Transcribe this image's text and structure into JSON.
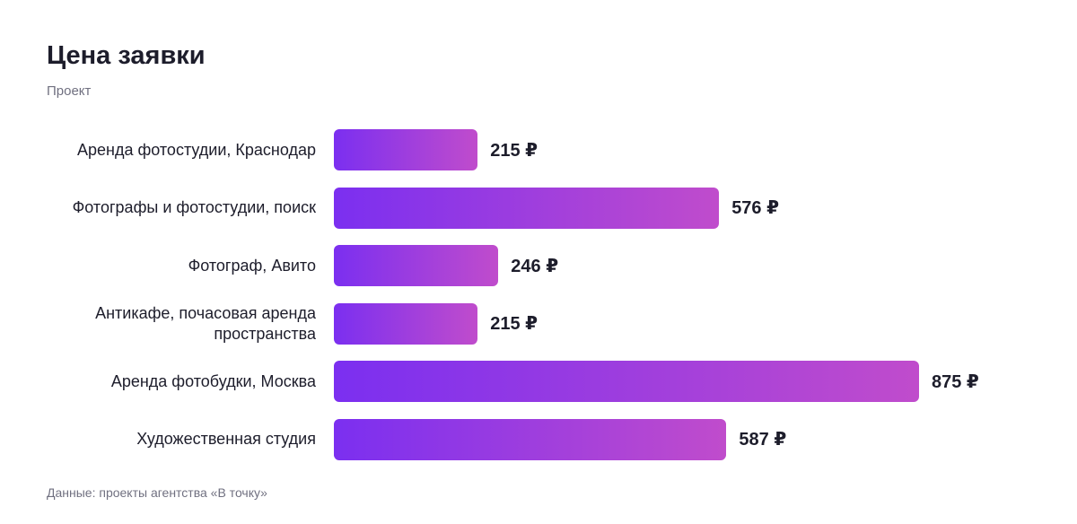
{
  "chart_data": {
    "type": "bar",
    "orientation": "horizontal",
    "title": "Цена заявки",
    "subtitle": "Проект",
    "categories": [
      "Аренда фотостудии, Краснодар",
      "Фотографы и фотостудии, поиск",
      "Фотограф, Авито",
      "Антикафе, почасовая аренда пространства",
      "Аренда фотобудки, Москва",
      "Художественная студия"
    ],
    "values": [
      215,
      576,
      246,
      215,
      875,
      587
    ],
    "value_labels": [
      "215 ₽",
      "576 ₽",
      "246 ₽",
      "215 ₽",
      "875 ₽",
      "587 ₽"
    ],
    "color": [
      "#7b2ff0",
      "#c04ccc"
    ],
    "source": "Данные: проекты агентства «В точку»"
  }
}
